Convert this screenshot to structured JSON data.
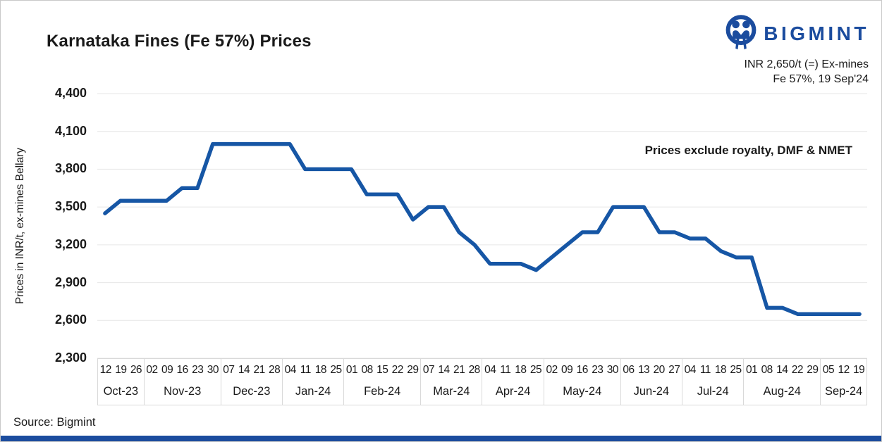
{
  "header": {
    "title": "Karnataka Fines (Fe 57%) Prices",
    "logo_text": "BIGMINT",
    "annotation_line1": "INR 2,650/t (=) Ex-mines",
    "annotation_line2": "Fe 57%, 19 Sep'24"
  },
  "colors": {
    "brand_blue": "#1b4c9e",
    "line_blue": "#1656a5",
    "gridline": "#e6e6e6",
    "band_border": "#d9d9d9"
  },
  "chart_data": {
    "type": "line",
    "title": "Karnataka Fines (Fe 57%) Prices",
    "xlabel": "",
    "ylabel": "Prices in INR/t, ex-mines Bellary",
    "note": "Prices exclude royalty, DMF & NMET",
    "line_color": "#1656a5",
    "grid": "horizontal-only",
    "legend_position": "none",
    "ylim": [
      2300,
      4400
    ],
    "ytick_step": 300,
    "yticks": [
      4400,
      4100,
      3800,
      3500,
      3200,
      2900,
      2600,
      2300
    ],
    "series_name": "Karnataka Fines Fe 57% price (INR/t, ex-mines Bellary)",
    "months": [
      {
        "label": "Oct-23",
        "days": [
          "12",
          "19",
          "26"
        ],
        "values": [
          3450,
          3550,
          3550
        ]
      },
      {
        "label": "Nov-23",
        "days": [
          "02",
          "09",
          "16",
          "23",
          "30"
        ],
        "values": [
          3550,
          3550,
          3650,
          3650,
          4000
        ]
      },
      {
        "label": "Dec-23",
        "days": [
          "07",
          "14",
          "21",
          "28"
        ],
        "values": [
          4000,
          4000,
          4000,
          4000
        ]
      },
      {
        "label": "Jan-24",
        "days": [
          "04",
          "11",
          "18",
          "25"
        ],
        "values": [
          4000,
          3800,
          3800,
          3800
        ]
      },
      {
        "label": "Feb-24",
        "days": [
          "01",
          "08",
          "15",
          "22",
          "29"
        ],
        "values": [
          3800,
          3600,
          3600,
          3600,
          3400
        ]
      },
      {
        "label": "Mar-24",
        "days": [
          "07",
          "14",
          "21",
          "28"
        ],
        "values": [
          3500,
          3500,
          3300,
          3200
        ]
      },
      {
        "label": "Apr-24",
        "days": [
          "04",
          "11",
          "18",
          "25"
        ],
        "values": [
          3050,
          3050,
          3050,
          3000
        ]
      },
      {
        "label": "May-24",
        "days": [
          "02",
          "09",
          "16",
          "23",
          "30"
        ],
        "values": [
          3100,
          3200,
          3300,
          3300,
          3500
        ]
      },
      {
        "label": "Jun-24",
        "days": [
          "06",
          "13",
          "20",
          "27"
        ],
        "values": [
          3500,
          3500,
          3300,
          3300
        ]
      },
      {
        "label": "Jul-24",
        "days": [
          "04",
          "11",
          "18",
          "25"
        ],
        "values": [
          3250,
          3250,
          3150,
          3100
        ]
      },
      {
        "label": "Aug-24",
        "days": [
          "01",
          "08",
          "14",
          "22",
          "29"
        ],
        "values": [
          3100,
          2700,
          2700,
          2650,
          2650
        ]
      },
      {
        "label": "Sep-24",
        "days": [
          "05",
          "12",
          "19"
        ],
        "values": [
          2650,
          2650,
          2650
        ]
      }
    ]
  },
  "footer": {
    "source": "Source: Bigmint"
  }
}
